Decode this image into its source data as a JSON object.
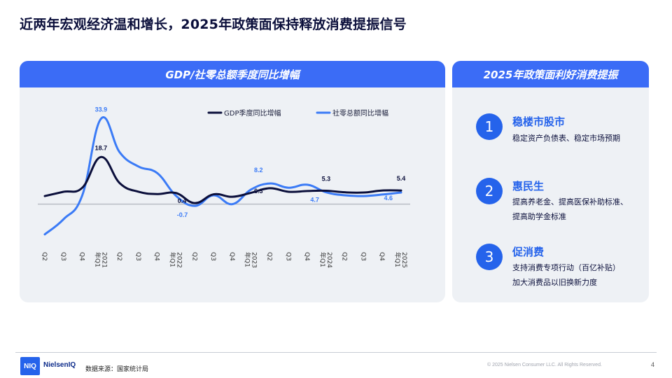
{
  "page": {
    "title": "近两年宏观经济温和增长，2025年政策面保持释放消费提振信号",
    "page_number": "4"
  },
  "left_panel": {
    "header": "GDP/社零总额季度同比增幅"
  },
  "right_panel": {
    "header": "2025年政策面利好消费提振",
    "items": [
      {
        "number": "1",
        "title": "稳楼市股市",
        "lines": [
          "稳定资产负债表、稳定市场预期"
        ]
      },
      {
        "number": "2",
        "title": "惠民生",
        "lines": [
          "提高养老金、提高医保补助标准、",
          "提高助学金标准"
        ]
      },
      {
        "number": "3",
        "title": "促消费",
        "lines": [
          "支持消费专项行动（百亿补贴）",
          "加大消费品以旧换新力度"
        ]
      }
    ]
  },
  "footer": {
    "logo_mark": "NIQ",
    "logo_text": "NielsenIQ",
    "source": "数据来源：国家统计局",
    "copyright": "© 2025 Nielsen Consumer LLC. All Rights Reserved."
  },
  "colors": {
    "gdp": "#0b0f3b",
    "retail": "#3b7bf6",
    "accent": "#2563eb",
    "header": "#3b6cf6",
    "zero_line": "#b8bcc4"
  },
  "chart_data": {
    "type": "line",
    "x": [
      "Q2",
      "Q3",
      "Q4",
      "2021年Q1",
      "Q2",
      "Q3",
      "Q4",
      "2022年Q1",
      "Q2",
      "Q3",
      "Q4",
      "2023年Q1",
      "Q2",
      "Q3",
      "Q4",
      "2024年Q1",
      "Q2",
      "Q3",
      "Q4",
      "2025年Q1"
    ],
    "x_lines": [
      [
        "Q2"
      ],
      [
        "Q3"
      ],
      [
        "Q4"
      ],
      [
        "2021",
        "年Q1"
      ],
      [
        "Q2"
      ],
      [
        "Q3"
      ],
      [
        "Q4"
      ],
      [
        "2022",
        "年Q1"
      ],
      [
        "Q2"
      ],
      [
        "Q3"
      ],
      [
        "Q4"
      ],
      [
        "2023",
        "年Q1"
      ],
      [
        "Q2"
      ],
      [
        "Q3"
      ],
      [
        "Q4"
      ],
      [
        "2024",
        "年Q1"
      ],
      [
        "Q2"
      ],
      [
        "Q3"
      ],
      [
        "Q4"
      ],
      [
        "2025",
        "年Q1"
      ]
    ],
    "series": [
      {
        "name": "GDP季度同比增幅",
        "values": [
          3.2,
          4.9,
          6.5,
          18.7,
          8.3,
          4.9,
          4.0,
          4.4,
          0.4,
          3.9,
          2.9,
          4.5,
          6.3,
          4.9,
          5.2,
          5.3,
          4.7,
          4.6,
          5.4,
          5.4
        ]
      },
      {
        "name": "社零总额同比增幅",
        "values": [
          -12.0,
          -6.0,
          3.5,
          33.9,
          20.5,
          14.9,
          12.3,
          3.3,
          -0.7,
          3.5,
          0.0,
          5.8,
          8.2,
          6.5,
          7.7,
          4.7,
          3.5,
          3.2,
          3.8,
          4.6
        ]
      }
    ],
    "annotations": [
      {
        "series": 1,
        "index": 3,
        "text": "33.9"
      },
      {
        "series": 0,
        "index": 3,
        "text": "18.7"
      },
      {
        "series": 0,
        "index": 8,
        "text": "0.4"
      },
      {
        "series": 1,
        "index": 8,
        "text": "-0.7"
      },
      {
        "series": 1,
        "index": 12,
        "text": "8.2"
      },
      {
        "series": 0,
        "index": 12,
        "text": "6.3"
      },
      {
        "series": 0,
        "index": 15,
        "text": "5.3"
      },
      {
        "series": 1,
        "index": 15,
        "text": "4.7"
      },
      {
        "series": 0,
        "index": 19,
        "text": "5.4"
      },
      {
        "series": 1,
        "index": 19,
        "text": "4.6"
      }
    ],
    "ylim": [
      -14,
      36
    ],
    "legend": "top-right",
    "grid": false
  }
}
